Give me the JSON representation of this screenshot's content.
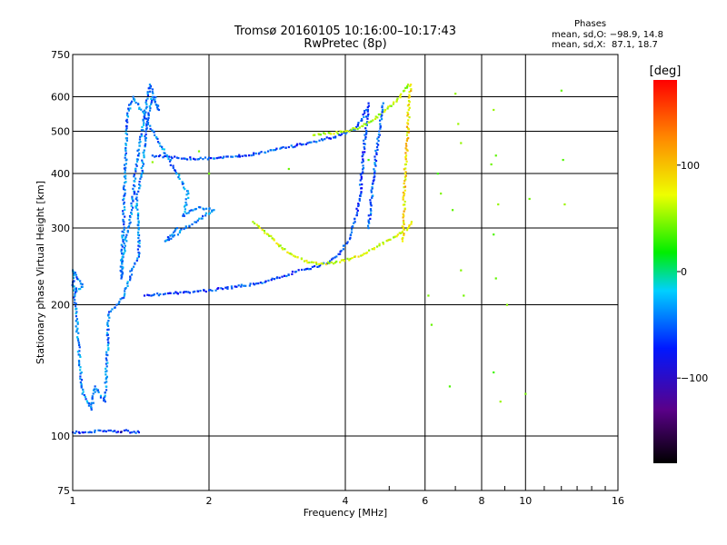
{
  "header": {
    "title_line1": "Tromsø 20160105 10:16:00–10:17:43",
    "title_line2": "RwPretec (8p)"
  },
  "phases_box": {
    "heading": "Phases",
    "line_o": "mean, sd,O: −98.9, 14.8",
    "line_x": "mean, sd,X:  87.1, 18.7"
  },
  "chart_data": {
    "type": "scatter",
    "xlabel": "Frequency [MHz]",
    "ylabel": "Stationary phase Virtual Height [km]",
    "x_scale": "log",
    "y_scale": "log",
    "xlim": [
      1,
      16
    ],
    "ylim": [
      75,
      750
    ],
    "x_ticks": [
      1,
      2,
      4,
      6,
      8,
      10,
      16
    ],
    "x_tick_labels": [
      "1",
      "2",
      "4",
      "6",
      "8",
      "10",
      "16"
    ],
    "y_ticks": [
      75,
      100,
      200,
      300,
      400,
      500,
      600,
      750
    ],
    "y_tick_labels": [
      "75",
      "100",
      "200",
      "300",
      "400",
      "500",
      "600",
      "750"
    ],
    "grid": true,
    "colorbar": {
      "label": "[deg]",
      "range": [
        -180,
        180
      ],
      "ticks": [
        100,
        0,
        -100
      ],
      "tick_labels": [
        "100",
        "0",
        "−100"
      ]
    },
    "series": [
      {
        "trace": "o-mode-F2",
        "phase": -110,
        "points": [
          [
            1.44,
            210
          ],
          [
            1.6,
            212
          ],
          [
            1.8,
            214
          ],
          [
            2.0,
            216
          ],
          [
            2.3,
            220
          ],
          [
            2.6,
            225
          ],
          [
            2.9,
            232
          ],
          [
            3.1,
            238
          ],
          [
            3.3,
            242
          ],
          [
            3.5,
            245
          ],
          [
            3.7,
            252
          ],
          [
            3.9,
            265
          ],
          [
            4.1,
            285
          ],
          [
            4.2,
            310
          ],
          [
            4.3,
            350
          ],
          [
            4.35,
            400
          ],
          [
            4.4,
            460
          ],
          [
            4.45,
            520
          ],
          [
            4.5,
            580
          ]
        ]
      },
      {
        "trace": "o-mode-F2-upper",
        "phase": -105,
        "points": [
          [
            1.5,
            440
          ],
          [
            1.7,
            435
          ],
          [
            1.9,
            432
          ],
          [
            2.1,
            435
          ],
          [
            2.4,
            440
          ],
          [
            2.7,
            450
          ],
          [
            3.0,
            460
          ],
          [
            3.3,
            470
          ],
          [
            3.6,
            480
          ],
          [
            3.9,
            490
          ],
          [
            4.2,
            505
          ],
          [
            4.35,
            530
          ],
          [
            4.45,
            560
          ]
        ]
      },
      {
        "trace": "x-mode-F2",
        "phase": 90,
        "points": [
          [
            2.5,
            310
          ],
          [
            2.7,
            290
          ],
          [
            2.9,
            270
          ],
          [
            3.1,
            258
          ],
          [
            3.3,
            250
          ],
          [
            3.5,
            248
          ],
          [
            3.8,
            250
          ],
          [
            4.1,
            255
          ],
          [
            4.4,
            262
          ],
          [
            4.7,
            272
          ],
          [
            5.0,
            282
          ],
          [
            5.3,
            292
          ],
          [
            5.5,
            300
          ],
          [
            5.6,
            310
          ]
        ]
      },
      {
        "trace": "x-mode-F2-upper",
        "phase": 80,
        "points": [
          [
            3.4,
            490
          ],
          [
            3.7,
            495
          ],
          [
            4.0,
            500
          ],
          [
            4.3,
            510
          ],
          [
            4.6,
            530
          ],
          [
            4.9,
            560
          ],
          [
            5.2,
            590
          ],
          [
            5.4,
            620
          ],
          [
            5.5,
            640
          ]
        ]
      },
      {
        "trace": "x-mode-steep",
        "phase": 110,
        "points": [
          [
            5.35,
            280
          ],
          [
            5.38,
            320
          ],
          [
            5.4,
            360
          ],
          [
            5.42,
            400
          ],
          [
            5.45,
            440
          ],
          [
            5.48,
            480
          ],
          [
            5.5,
            520
          ],
          [
            5.52,
            560
          ],
          [
            5.55,
            600
          ],
          [
            5.58,
            640
          ]
        ]
      },
      {
        "trace": "o-mode-steep",
        "phase": -100,
        "points": [
          [
            4.5,
            300
          ],
          [
            4.55,
            340
          ],
          [
            4.6,
            380
          ],
          [
            4.65,
            420
          ],
          [
            4.7,
            460
          ],
          [
            4.75,
            500
          ],
          [
            4.8,
            540
          ],
          [
            4.85,
            580
          ]
        ]
      },
      {
        "trace": "es-layer-100km",
        "phase": -115,
        "points": [
          [
            1.0,
            102
          ],
          [
            1.05,
            102
          ],
          [
            1.1,
            102
          ],
          [
            1.15,
            103
          ],
          [
            1.2,
            103
          ],
          [
            1.25,
            102
          ],
          [
            1.3,
            103
          ],
          [
            1.35,
            102
          ],
          [
            1.4,
            102
          ]
        ]
      },
      {
        "trace": "low-echoes",
        "phase": -90,
        "points": [
          [
            1.0,
            225
          ],
          [
            1.02,
            215
          ],
          [
            1.05,
            220
          ],
          [
            1.0,
            240
          ],
          [
            1.05,
            125
          ],
          [
            1.1,
            115
          ],
          [
            1.12,
            130
          ],
          [
            1.18,
            120
          ],
          [
            1.2,
            190
          ],
          [
            1.25,
            200
          ],
          [
            1.3,
            210
          ],
          [
            1.35,
            240
          ],
          [
            1.4,
            260
          ],
          [
            1.4,
            300
          ],
          [
            1.38,
            350
          ],
          [
            1.42,
            400
          ],
          [
            1.45,
            500
          ],
          [
            1.5,
            600
          ],
          [
            1.55,
            560
          ],
          [
            1.48,
            640
          ],
          [
            1.38,
            420
          ],
          [
            1.35,
            330
          ],
          [
            1.3,
            270
          ],
          [
            1.28,
            230
          ],
          [
            1.32,
            550
          ],
          [
            1.36,
            600
          ],
          [
            1.8,
            360
          ],
          [
            1.75,
            320
          ],
          [
            1.9,
            335
          ],
          [
            2.05,
            330
          ],
          [
            1.6,
            280
          ],
          [
            1.7,
            300
          ]
        ]
      },
      {
        "trace": "scattered",
        "phase": 60,
        "points": [
          [
            6.4,
            400
          ],
          [
            6.5,
            360
          ],
          [
            6.9,
            330
          ],
          [
            7.0,
            610
          ],
          [
            7.1,
            520
          ],
          [
            7.2,
            470
          ],
          [
            8.5,
            560
          ],
          [
            8.6,
            440
          ],
          [
            8.4,
            420
          ],
          [
            8.7,
            340
          ],
          [
            8.5,
            290
          ],
          [
            9.1,
            200
          ],
          [
            10.2,
            350
          ],
          [
            12.0,
            620
          ],
          [
            12.1,
            430
          ],
          [
            12.2,
            340
          ],
          [
            6.1,
            210
          ],
          [
            6.2,
            180
          ],
          [
            6.8,
            130
          ],
          [
            8.5,
            140
          ],
          [
            8.8,
            120
          ],
          [
            10.0,
            125
          ],
          [
            7.2,
            240
          ],
          [
            7.3,
            210
          ],
          [
            8.6,
            230
          ],
          [
            4.5,
            430
          ],
          [
            3.0,
            410
          ],
          [
            1.5,
            425
          ],
          [
            1.9,
            450
          ],
          [
            2.0,
            400
          ]
        ]
      }
    ]
  }
}
